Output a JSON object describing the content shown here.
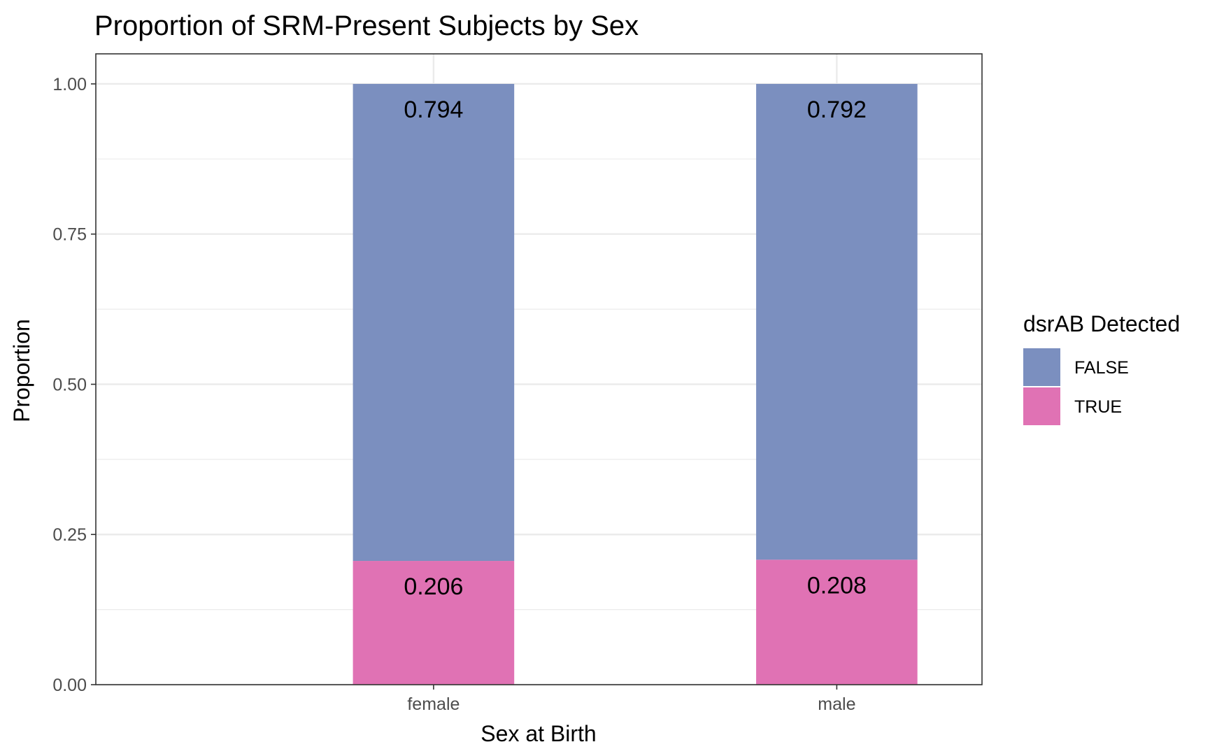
{
  "chart_data": {
    "type": "bar",
    "stacked": true,
    "title": "Proportion of SRM-Present Subjects by Sex",
    "xlabel": "Sex at Birth",
    "ylabel": "Proportion",
    "categories": [
      "female",
      "male"
    ],
    "series": [
      {
        "name": "FALSE",
        "values": [
          0.794,
          0.792
        ],
        "color": "#7b8fbf",
        "labels": [
          "0.794",
          "0.792"
        ]
      },
      {
        "name": "TRUE",
        "values": [
          0.206,
          0.208
        ],
        "color": "#e072b4",
        "labels": [
          "0.206",
          "0.208"
        ]
      }
    ],
    "stack_order_bottom_to_top": [
      "TRUE",
      "FALSE"
    ],
    "ylim": [
      0,
      1.05
    ],
    "yticks": [
      0,
      0.25,
      0.5,
      0.75,
      1.0
    ],
    "ytick_labels": [
      "0.00",
      "0.25",
      "0.50",
      "0.75",
      "1.00"
    ],
    "grid": true,
    "legend": {
      "title": "dsrAB Detected",
      "position": "right"
    },
    "panel_border_color": "#333333",
    "grid_color": "#ebebeb"
  }
}
